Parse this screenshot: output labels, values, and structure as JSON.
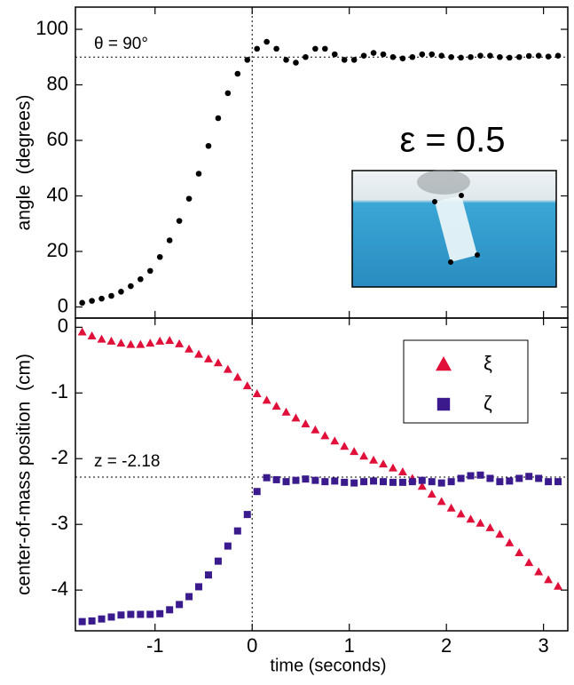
{
  "chart_data": [
    {
      "type": "scatter",
      "ylabel": "angle  (degrees)",
      "annotation": "θ = 90°",
      "inset_label": "ε = 0.5",
      "x": [
        -1.75,
        -1.65,
        -1.55,
        -1.45,
        -1.35,
        -1.25,
        -1.15,
        -1.05,
        -0.95,
        -0.85,
        -0.75,
        -0.65,
        -0.55,
        -0.45,
        -0.35,
        -0.25,
        -0.15,
        -0.05,
        0.05,
        0.15,
        0.25,
        0.35,
        0.45,
        0.55,
        0.65,
        0.75,
        0.85,
        0.95,
        1.05,
        1.15,
        1.25,
        1.35,
        1.45,
        1.55,
        1.65,
        1.75,
        1.85,
        1.95,
        2.05,
        2.15,
        2.25,
        2.35,
        2.45,
        2.55,
        2.65,
        2.75,
        2.85,
        2.95,
        3.05,
        3.15
      ],
      "series": [
        {
          "color": "#000000",
          "marker": "circle",
          "values": [
            1.5,
            2.2,
            3,
            4,
            5.5,
            7.5,
            10,
            13,
            18,
            24,
            31,
            39,
            48,
            58,
            68,
            77,
            84,
            89,
            93,
            95.5,
            93,
            89,
            88,
            90,
            93,
            93,
            91,
            89,
            89,
            90.5,
            91.5,
            91,
            90,
            89.5,
            90,
            91,
            91,
            90.5,
            90,
            89.8,
            90,
            90.5,
            90.5,
            90,
            89.8,
            90,
            90.4,
            90.5,
            90.2,
            90.5
          ]
        }
      ],
      "xlim": [
        -1.82,
        3.25
      ],
      "xticks": [
        -1,
        0,
        1,
        2,
        3
      ],
      "ylim": [
        -4,
        108
      ],
      "yticks": [
        0,
        20,
        40,
        60,
        80,
        100
      ],
      "hline": 90,
      "vline": 0
    },
    {
      "type": "scatter",
      "xlabel": "time (seconds)",
      "ylabel": "center-of-mass position  (cm)",
      "annotation": "z = -2.18",
      "x": [
        -1.75,
        -1.65,
        -1.55,
        -1.45,
        -1.35,
        -1.25,
        -1.15,
        -1.05,
        -0.95,
        -0.85,
        -0.75,
        -0.65,
        -0.55,
        -0.45,
        -0.35,
        -0.25,
        -0.15,
        -0.05,
        0.05,
        0.15,
        0.25,
        0.35,
        0.45,
        0.55,
        0.65,
        0.75,
        0.85,
        0.95,
        1.05,
        1.15,
        1.25,
        1.35,
        1.45,
        1.55,
        1.65,
        1.75,
        1.85,
        1.95,
        2.05,
        2.15,
        2.25,
        2.35,
        2.45,
        2.55,
        2.65,
        2.75,
        2.85,
        2.95,
        3.05,
        3.15
      ],
      "series": [
        {
          "name": "ξ",
          "color": "#e0103a",
          "marker": "triangle",
          "values": [
            -0.07,
            -0.13,
            -0.18,
            -0.21,
            -0.24,
            -0.26,
            -0.26,
            -0.24,
            -0.21,
            -0.2,
            -0.25,
            -0.33,
            -0.41,
            -0.48,
            -0.54,
            -0.64,
            -0.76,
            -0.89,
            -1.01,
            -1.11,
            -1.2,
            -1.29,
            -1.38,
            -1.47,
            -1.56,
            -1.65,
            -1.73,
            -1.81,
            -1.89,
            -1.96,
            -2.02,
            -2.08,
            -2.14,
            -2.2,
            -2.3,
            -2.42,
            -2.54,
            -2.65,
            -2.75,
            -2.84,
            -2.92,
            -2.98,
            -3.05,
            -3.15,
            -3.28,
            -3.43,
            -3.58,
            -3.72,
            -3.84,
            -3.94
          ]
        },
        {
          "name": "ζ",
          "color": "#3a1a8c",
          "marker": "square",
          "values": [
            -4.48,
            -4.47,
            -4.44,
            -4.41,
            -4.38,
            -4.37,
            -4.37,
            -4.37,
            -4.36,
            -4.3,
            -4.22,
            -4.1,
            -3.95,
            -3.77,
            -3.56,
            -3.33,
            -3.1,
            -2.85,
            -2.5,
            -2.29,
            -2.32,
            -2.35,
            -2.33,
            -2.31,
            -2.33,
            -2.35,
            -2.34,
            -2.36,
            -2.37,
            -2.35,
            -2.34,
            -2.35,
            -2.36,
            -2.36,
            -2.35,
            -2.33,
            -2.35,
            -2.37,
            -2.35,
            -2.3,
            -2.26,
            -2.25,
            -2.3,
            -2.35,
            -2.34,
            -2.3,
            -2.27,
            -2.3,
            -2.35,
            -2.35
          ]
        }
      ],
      "xlim": [
        -1.82,
        3.25
      ],
      "xticks": [
        -1,
        0,
        1,
        2,
        3
      ],
      "ylim": [
        -4.62,
        0.14
      ],
      "yticks": [
        0,
        -1,
        -2,
        -3,
        -4
      ],
      "hline": -2.28,
      "vline": 0
    }
  ]
}
